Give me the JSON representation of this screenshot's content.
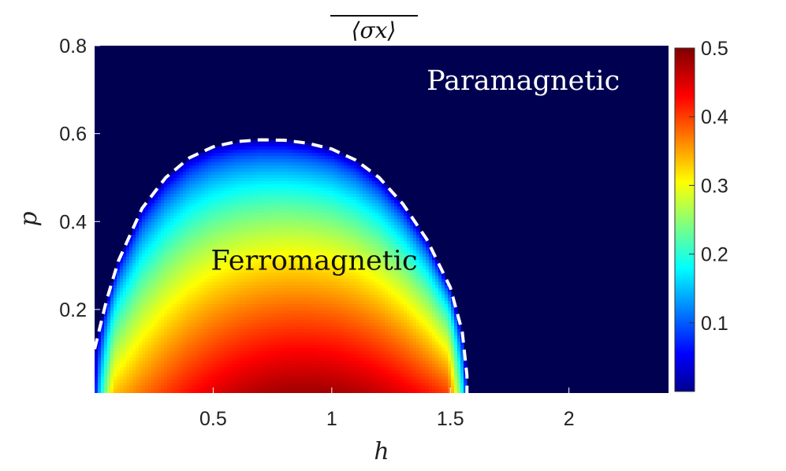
{
  "chart_data": {
    "type": "heatmap",
    "title": "⟨σx⟩",
    "xlabel": "h",
    "ylabel": "p",
    "xlim": [
      0.0,
      2.42
    ],
    "ylim": [
      0.01,
      0.8
    ],
    "xticks": [
      {
        "value": 0.5,
        "label": "0.5"
      },
      {
        "value": 1.0,
        "label": "1"
      },
      {
        "value": 1.5,
        "label": "1.5"
      },
      {
        "value": 2.0,
        "label": "2"
      }
    ],
    "yticks": [
      {
        "value": 0.2,
        "label": "0.2"
      },
      {
        "value": 0.4,
        "label": "0.4"
      },
      {
        "value": 0.6,
        "label": "0.6"
      },
      {
        "value": 0.8,
        "label": "0.8"
      }
    ],
    "colorbar": {
      "colormap": "jet",
      "range": [
        0.0,
        0.5
      ],
      "ticks": [
        {
          "value": 0.1,
          "label": "0.1"
        },
        {
          "value": 0.2,
          "label": "0.2"
        },
        {
          "value": 0.3,
          "label": "0.3"
        },
        {
          "value": 0.4,
          "label": "0.4"
        },
        {
          "value": 0.5,
          "label": "0.5"
        }
      ]
    },
    "field": {
      "description_values": "order parameter: ~0.49 near (h=0.9, p=0.01), 0 outside the phase boundary",
      "peak_value": 0.49,
      "peak_h": 0.9,
      "zero_outside_boundary": true
    },
    "phase_boundary": {
      "style": "white dashed",
      "points": [
        [
          0.0,
          0.11
        ],
        [
          0.05,
          0.22
        ],
        [
          0.1,
          0.31
        ],
        [
          0.2,
          0.43
        ],
        [
          0.3,
          0.5
        ],
        [
          0.4,
          0.545
        ],
        [
          0.5,
          0.57
        ],
        [
          0.6,
          0.582
        ],
        [
          0.7,
          0.586
        ],
        [
          0.8,
          0.585
        ],
        [
          0.9,
          0.578
        ],
        [
          1.0,
          0.565
        ],
        [
          1.1,
          0.54
        ],
        [
          1.2,
          0.5
        ],
        [
          1.3,
          0.44
        ],
        [
          1.4,
          0.36
        ],
        [
          1.5,
          0.25
        ],
        [
          1.55,
          0.15
        ],
        [
          1.57,
          0.05
        ],
        [
          1.57,
          0.01
        ]
      ]
    },
    "annotations": [
      {
        "text": "Paramagnetic",
        "h": 1.4,
        "p": 0.7,
        "color": "#ffffff"
      },
      {
        "text": "Ferromagnetic",
        "h": 0.49,
        "p": 0.29,
        "color": "#111111"
      }
    ],
    "colors": {
      "background": "#000050",
      "boundary": "#ffffff"
    }
  }
}
